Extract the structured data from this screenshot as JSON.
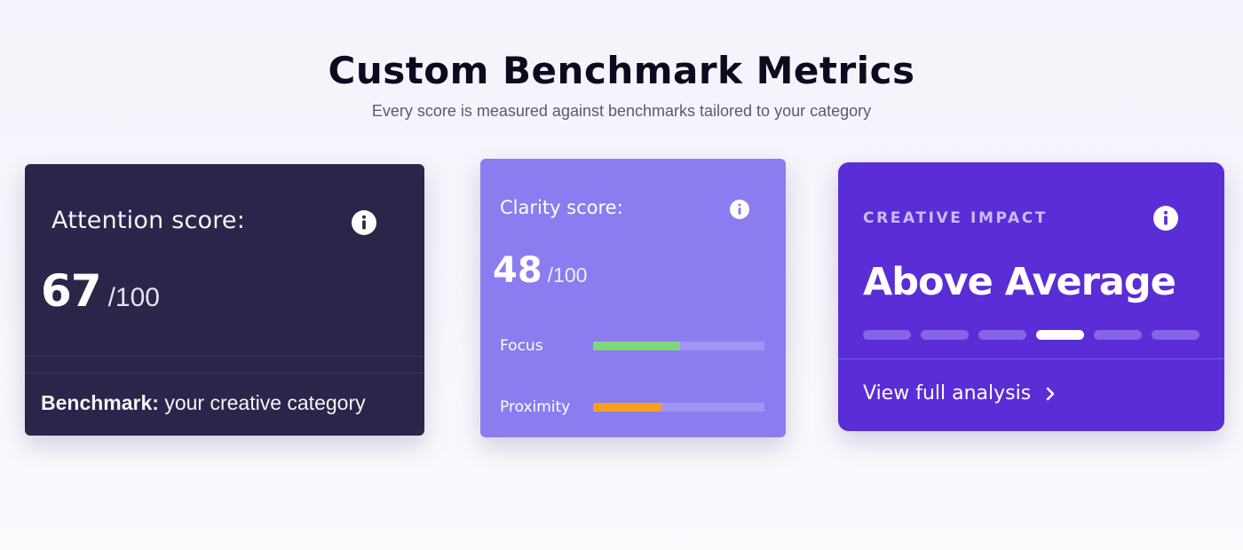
{
  "header": {
    "title": "Custom Benchmark Metrics",
    "subtitle": "Every score is measured against benchmarks tailored to your category"
  },
  "cards": {
    "attention": {
      "label": "Attention score:",
      "score": "67",
      "max": "/100",
      "benchmark_label": "Benchmark:",
      "benchmark_value": " your creative category",
      "info_icon": "info-icon",
      "background": "#29264a"
    },
    "clarity": {
      "label": "Clarity score:",
      "score": "48",
      "max": "/100",
      "info_icon": "info-icon",
      "background": "#8b7cf0",
      "metrics": [
        {
          "label": "Focus",
          "level": 0.51,
          "color": "#7ed87a"
        },
        {
          "label": "Proximity",
          "level": 0.4,
          "color": "#f5a021"
        }
      ]
    },
    "impact": {
      "label": "CREATIVE IMPACT",
      "rating": "Above Average",
      "scale_segments": 6,
      "active_segment": 4,
      "link_label": "View full analysis",
      "link_icon": "chevron-right-icon",
      "info_icon": "info-icon",
      "background": "#5a2dd6"
    }
  }
}
